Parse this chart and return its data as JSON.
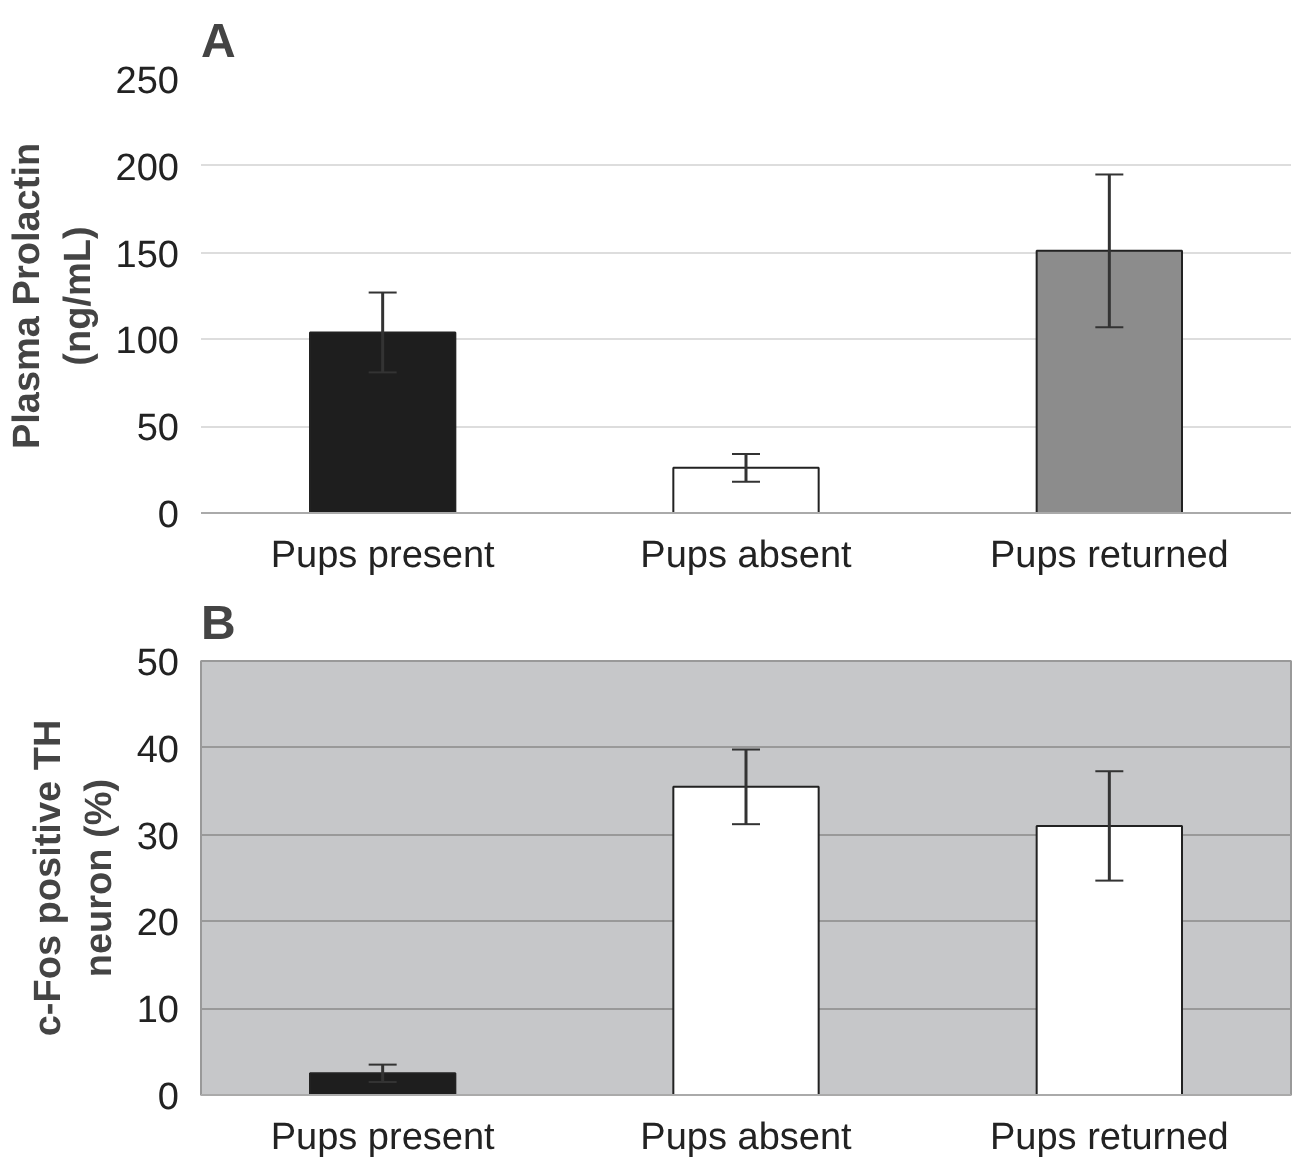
{
  "chart_data": [
    {
      "type": "bar",
      "title": "A",
      "ylabel": "Plasma Prolactin\n(ng/mL)",
      "categories": [
        "Pups present",
        "Pups absent",
        "Pups returned"
      ],
      "values": [
        104,
        26,
        151
      ],
      "colors": [
        "#1e1e1e",
        "#ffffff",
        "#8c8c8c"
      ],
      "errors": [
        23,
        8,
        44
      ],
      "ylim": [
        0,
        250
      ],
      "yticks": [
        0,
        50,
        100,
        150,
        200,
        250
      ],
      "grid": "y"
    },
    {
      "type": "bar",
      "title": "B",
      "ylabel": "c-Fos positive TH\nneuron (%)",
      "categories": [
        "Pups present",
        "Pups absent",
        "Pups returned"
      ],
      "values": [
        2.5,
        35.5,
        31
      ],
      "colors": [
        "#1e1e1e",
        "#ffffff",
        "#ffffff"
      ],
      "errors": [
        1,
        4.3,
        6.3
      ],
      "ylim": [
        0,
        50
      ],
      "yticks": [
        0,
        10,
        20,
        30,
        40,
        50
      ],
      "grid": "y"
    }
  ]
}
